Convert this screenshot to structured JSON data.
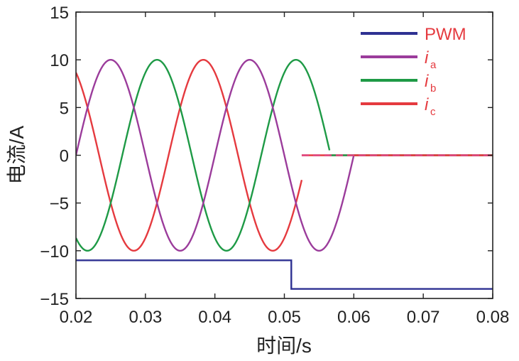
{
  "chart_data": {
    "type": "line",
    "xlabel": "时间/s",
    "ylabel": "电流/A",
    "xlim": [
      0.02,
      0.08
    ],
    "ylim": [
      -15,
      15
    ],
    "xticks": [
      0.02,
      0.03,
      0.04,
      0.05,
      0.06,
      0.07,
      0.08
    ],
    "yticks": [
      15,
      10,
      5,
      0,
      -5,
      -10,
      -15
    ],
    "xtick_labels": [
      "0.02",
      "0.03",
      "0.04",
      "0.05",
      "0.06",
      "0.07",
      "0.08"
    ],
    "ytick_labels": [
      "15",
      "10",
      "5",
      "0",
      "−5",
      "−10",
      "−15"
    ],
    "grid": false,
    "legend_position": "top-right",
    "series": [
      {
        "name": "PWM",
        "color": "#2e3192",
        "x": [
          0.02,
          0.051,
          0.051,
          0.08
        ],
        "y": [
          -11,
          -11,
          -14,
          -14
        ]
      },
      {
        "name": "i",
        "subscript": "a",
        "color": "#9b3c9b",
        "amplitude": 10,
        "frequency_hz": 50,
        "phase_deg": 0,
        "samples_x": [
          0.02,
          0.025,
          0.03,
          0.035,
          0.04,
          0.045,
          0.05,
          0.055,
          0.06
        ],
        "samples_y": [
          0,
          10,
          0,
          -10,
          0,
          10,
          0,
          -10,
          0
        ],
        "zero_after": 0.06,
        "color_after": "#e53a3f"
      },
      {
        "name": "i",
        "subscript": "b",
        "color": "#1e9a46",
        "amplitude": 10,
        "frequency_hz": 50,
        "phase_deg": -120,
        "samples_x": [
          0.02,
          0.0217,
          0.0317,
          0.0417,
          0.0517,
          0.0565
        ],
        "samples_y": [
          -8.66,
          -10,
          10,
          -10,
          10,
          0
        ],
        "zero_after": 0.0565,
        "color_after": "#1e9a46"
      },
      {
        "name": "i",
        "subscript": "c",
        "color": "#e53a3f",
        "amplitude": 10,
        "frequency_hz": 50,
        "phase_deg": 120,
        "samples_x": [
          0.02,
          0.0283,
          0.0383,
          0.0483,
          0.0525
        ],
        "samples_y": [
          8.66,
          -10,
          10,
          -10,
          0
        ],
        "zero_after": 0.0525,
        "color_after": "#e53a3f"
      }
    ]
  }
}
